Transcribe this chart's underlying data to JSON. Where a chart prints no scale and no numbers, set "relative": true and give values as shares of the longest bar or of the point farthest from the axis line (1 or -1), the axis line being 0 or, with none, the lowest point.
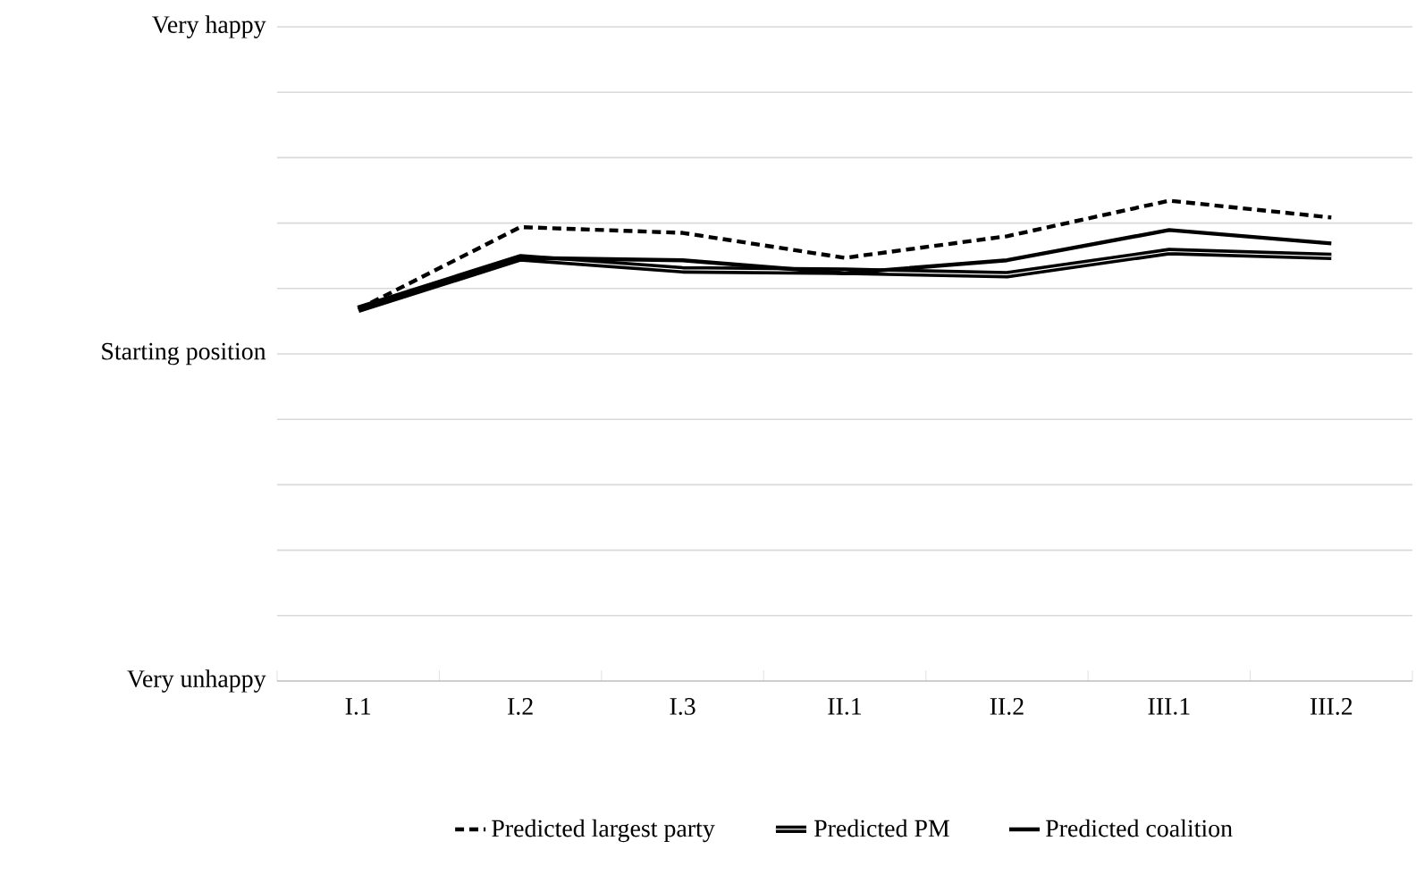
{
  "chart_data": {
    "type": "line",
    "relative": true,
    "categories": [
      "I.1",
      "I.2",
      "I.3",
      "II.1",
      "II.2",
      "III.1",
      "III.2"
    ],
    "series": [
      {
        "name": "Predicted largest party",
        "color": "#000000",
        "line_style": "dashed",
        "values": [
          0.774,
          0.945,
          0.933,
          0.881,
          0.926,
          1,
          0.965
        ]
      },
      {
        "name": "Predicted PM",
        "color": "#000000",
        "line_style": "solid",
        "values": [
          0.774,
          0.881,
          0.856,
          0.853,
          0.846,
          0.894,
          0.884
        ]
      },
      {
        "name": "Predicted coalition",
        "color": "#000000",
        "line_style": "solid",
        "values": [
          0.774,
          0.881,
          0.876,
          0.849,
          0.876,
          0.939,
          0.911
        ]
      }
    ],
    "annotations": [
      "Very happy",
      "Starting position",
      "Very unhappy"
    ],
    "grid": "y",
    "legend": "bottom",
    "marker": "none"
  }
}
